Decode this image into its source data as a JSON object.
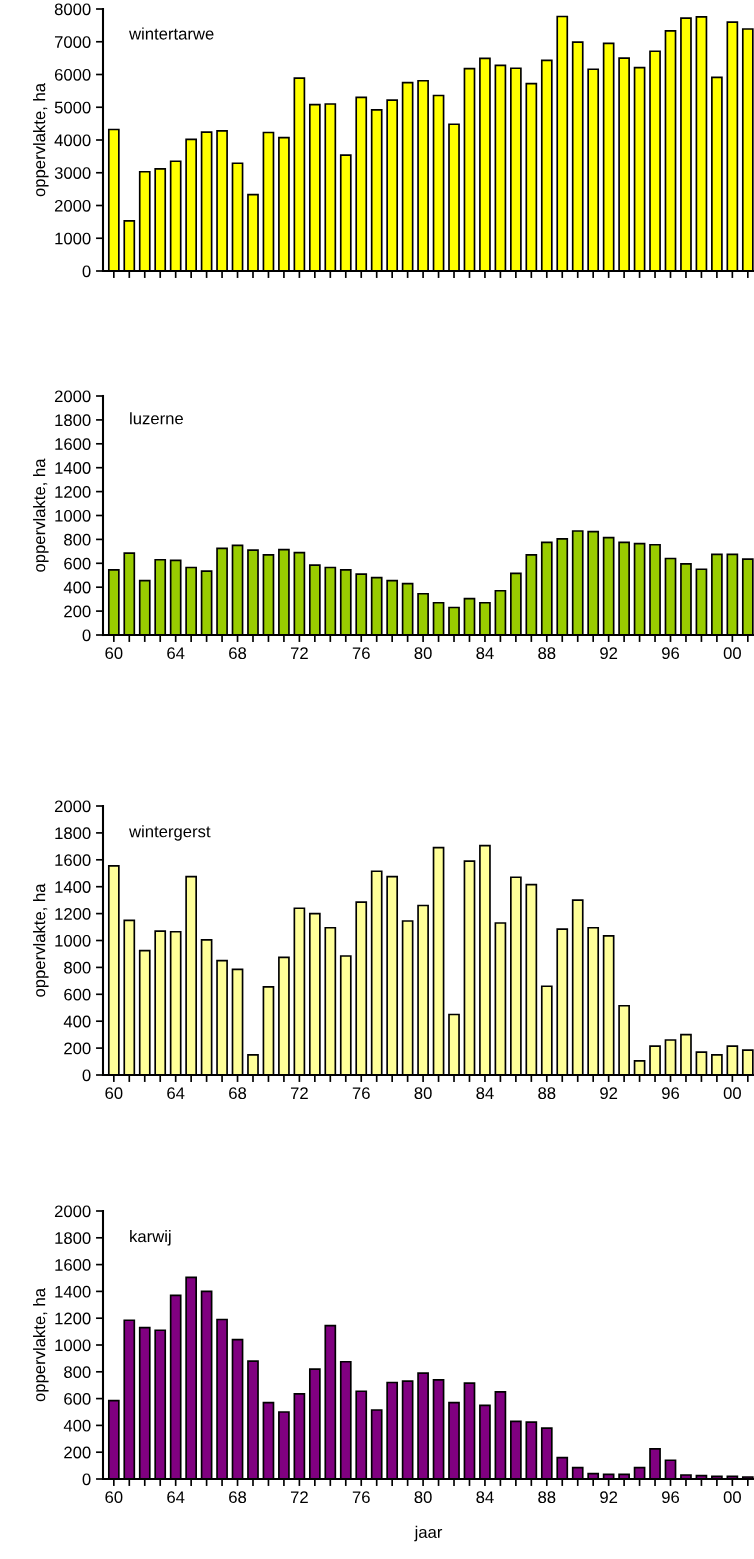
{
  "chart_data": [
    {
      "type": "bar",
      "title": "wintertarwe",
      "ylabel": "oppervlakte, ha",
      "tick_labels": "y",
      "color": "#ffff00",
      "categories": [
        null,
        null,
        null,
        null,
        null,
        null,
        null,
        null,
        null,
        null,
        null,
        null,
        null,
        null,
        null,
        null,
        null,
        null,
        null,
        null,
        null,
        null,
        null,
        null,
        null,
        null,
        null,
        null,
        null,
        null,
        null,
        null,
        null,
        null,
        null,
        null,
        null,
        null,
        null,
        null,
        null,
        null
      ],
      "values": [
        4320,
        1530,
        3030,
        3120,
        3350,
        4020,
        4240,
        4280,
        3290,
        2330,
        4230,
        4070,
        5890,
        5080,
        5100,
        3540,
        5300,
        4920,
        5220,
        5750,
        5810,
        5360,
        4480,
        6180,
        6490,
        6280,
        6190,
        5720,
        6430,
        7770,
        6990,
        6160,
        6950,
        6500,
        6210,
        6710,
        7330,
        7720,
        7760,
        5910,
        7600,
        7390
      ],
      "ylim": [
        0,
        8000
      ],
      "yticks": [
        0,
        1000,
        2000,
        3000,
        4000,
        5000,
        6000,
        7000,
        8000
      ],
      "grid": false,
      "legend": false
    },
    {
      "type": "bar",
      "title": "luzerne",
      "ylabel": "oppervlakte, ha",
      "color": "#99cc00",
      "categories": [
        "60",
        null,
        null,
        null,
        "64",
        null,
        null,
        null,
        "68",
        null,
        null,
        null,
        "72",
        null,
        null,
        null,
        "76",
        null,
        null,
        null,
        "80",
        null,
        null,
        null,
        "84",
        null,
        null,
        null,
        "88",
        null,
        null,
        null,
        "92",
        null,
        null,
        null,
        "96",
        null,
        null,
        null,
        "00",
        null
      ],
      "values": [
        545,
        685,
        455,
        630,
        625,
        565,
        535,
        725,
        750,
        710,
        670,
        715,
        690,
        585,
        565,
        545,
        510,
        480,
        455,
        430,
        345,
        270,
        230,
        305,
        270,
        370,
        515,
        670,
        775,
        805,
        870,
        865,
        815,
        775,
        765,
        755,
        640,
        595,
        550,
        675,
        675,
        635
      ],
      "ylim": [
        0,
        2000
      ],
      "yticks": [
        0,
        200,
        400,
        600,
        800,
        1000,
        1200,
        1400,
        1600,
        1800,
        2000
      ],
      "grid": false,
      "legend": false
    },
    {
      "type": "bar",
      "title": "wintergerst",
      "ylabel": "oppervlakte, ha",
      "color": "#ffff99",
      "categories": [
        "60",
        null,
        null,
        null,
        "64",
        null,
        null,
        null,
        "68",
        null,
        null,
        null,
        "72",
        null,
        null,
        null,
        "76",
        null,
        null,
        null,
        "80",
        null,
        null,
        null,
        "84",
        null,
        null,
        null,
        "88",
        null,
        null,
        null,
        "92",
        null,
        null,
        null,
        "96",
        null,
        null,
        null,
        "00",
        null
      ],
      "values": [
        1555,
        1150,
        925,
        1070,
        1065,
        1475,
        1005,
        850,
        785,
        150,
        655,
        875,
        1240,
        1200,
        1095,
        885,
        1285,
        1515,
        1475,
        1145,
        1260,
        1690,
        450,
        1590,
        1705,
        1130,
        1470,
        1415,
        660,
        1085,
        1300,
        1095,
        1035,
        515,
        105,
        215,
        260,
        300,
        170,
        150,
        215,
        185
      ],
      "ylim": [
        0,
        2000
      ],
      "yticks": [
        0,
        200,
        400,
        600,
        800,
        1000,
        1200,
        1400,
        1600,
        1800,
        2000
      ],
      "grid": false,
      "legend": false
    },
    {
      "type": "bar",
      "title": "karwij",
      "ylabel": "oppervlakte, ha",
      "xlabel": "jaar",
      "color": "#800080",
      "categories": [
        "60",
        null,
        null,
        null,
        "64",
        null,
        null,
        null,
        "68",
        null,
        null,
        null,
        "72",
        null,
        null,
        null,
        "76",
        null,
        null,
        null,
        "80",
        null,
        null,
        null,
        "84",
        null,
        null,
        null,
        "88",
        null,
        null,
        null,
        "92",
        null,
        null,
        null,
        "96",
        null,
        null,
        null,
        "00",
        null
      ],
      "values": [
        585,
        1185,
        1130,
        1110,
        1370,
        1505,
        1400,
        1190,
        1040,
        880,
        570,
        500,
        635,
        820,
        1145,
        875,
        655,
        515,
        720,
        730,
        790,
        740,
        570,
        715,
        550,
        650,
        430,
        425,
        380,
        160,
        85,
        40,
        35,
        35,
        85,
        225,
        140,
        30,
        25,
        20,
        20,
        15
      ],
      "ylim": [
        0,
        2000
      ],
      "yticks": [
        0,
        200,
        400,
        600,
        800,
        1000,
        1200,
        1400,
        1600,
        1800,
        2000
      ],
      "grid": false,
      "legend": false
    }
  ]
}
